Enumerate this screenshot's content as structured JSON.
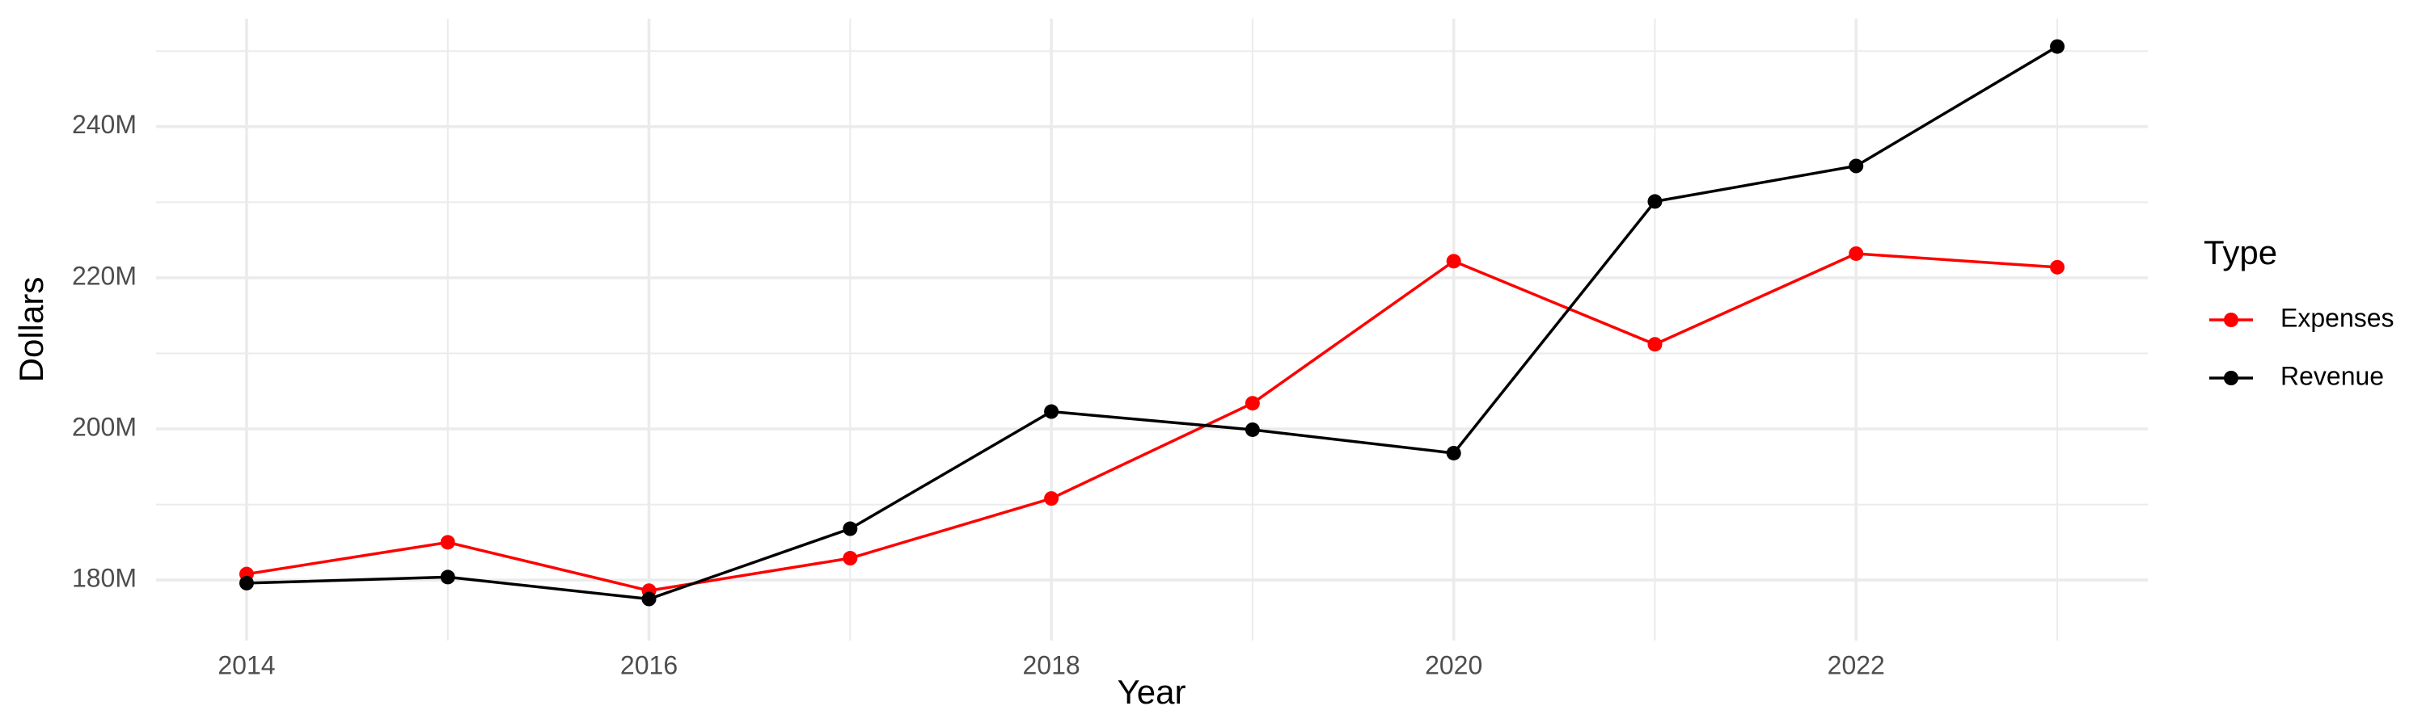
{
  "chart_data": {
    "type": "line",
    "x_label": "Year",
    "y_label": "Dollars",
    "legend_title": "Type",
    "x": [
      2014,
      2015,
      2016,
      2017,
      2018,
      2019,
      2020,
      2021,
      2022,
      2023
    ],
    "series": [
      {
        "name": "Expenses",
        "color": "#ff0000",
        "values": [
          180800000,
          185000000,
          178600000,
          182900000,
          190800000,
          203400000,
          222200000,
          211200000,
          223200000,
          221400000
        ]
      },
      {
        "name": "Revenue",
        "color": "#000000",
        "values": [
          179600000,
          180400000,
          177500000,
          186800000,
          202300000,
          199900000,
          196800000,
          230100000,
          234800000,
          250600000
        ]
      }
    ],
    "xlim": [
      2013.55,
      2023.45
    ],
    "xticks": [
      2014,
      2016,
      2018,
      2020,
      2022
    ],
    "x_minor_ticks": [
      2015,
      2017,
      2019,
      2021,
      2023
    ],
    "ylim": [
      172000000,
      254300000
    ],
    "yticks": [
      {
        "value": 180000000,
        "label": "180M"
      },
      {
        "value": 200000000,
        "label": "200M"
      },
      {
        "value": 220000000,
        "label": "220M"
      },
      {
        "value": 240000000,
        "label": "240M"
      }
    ],
    "y_minor_ticks": [
      190000000,
      210000000,
      230000000,
      250000000
    ],
    "grid": true,
    "legend_position": "right"
  }
}
